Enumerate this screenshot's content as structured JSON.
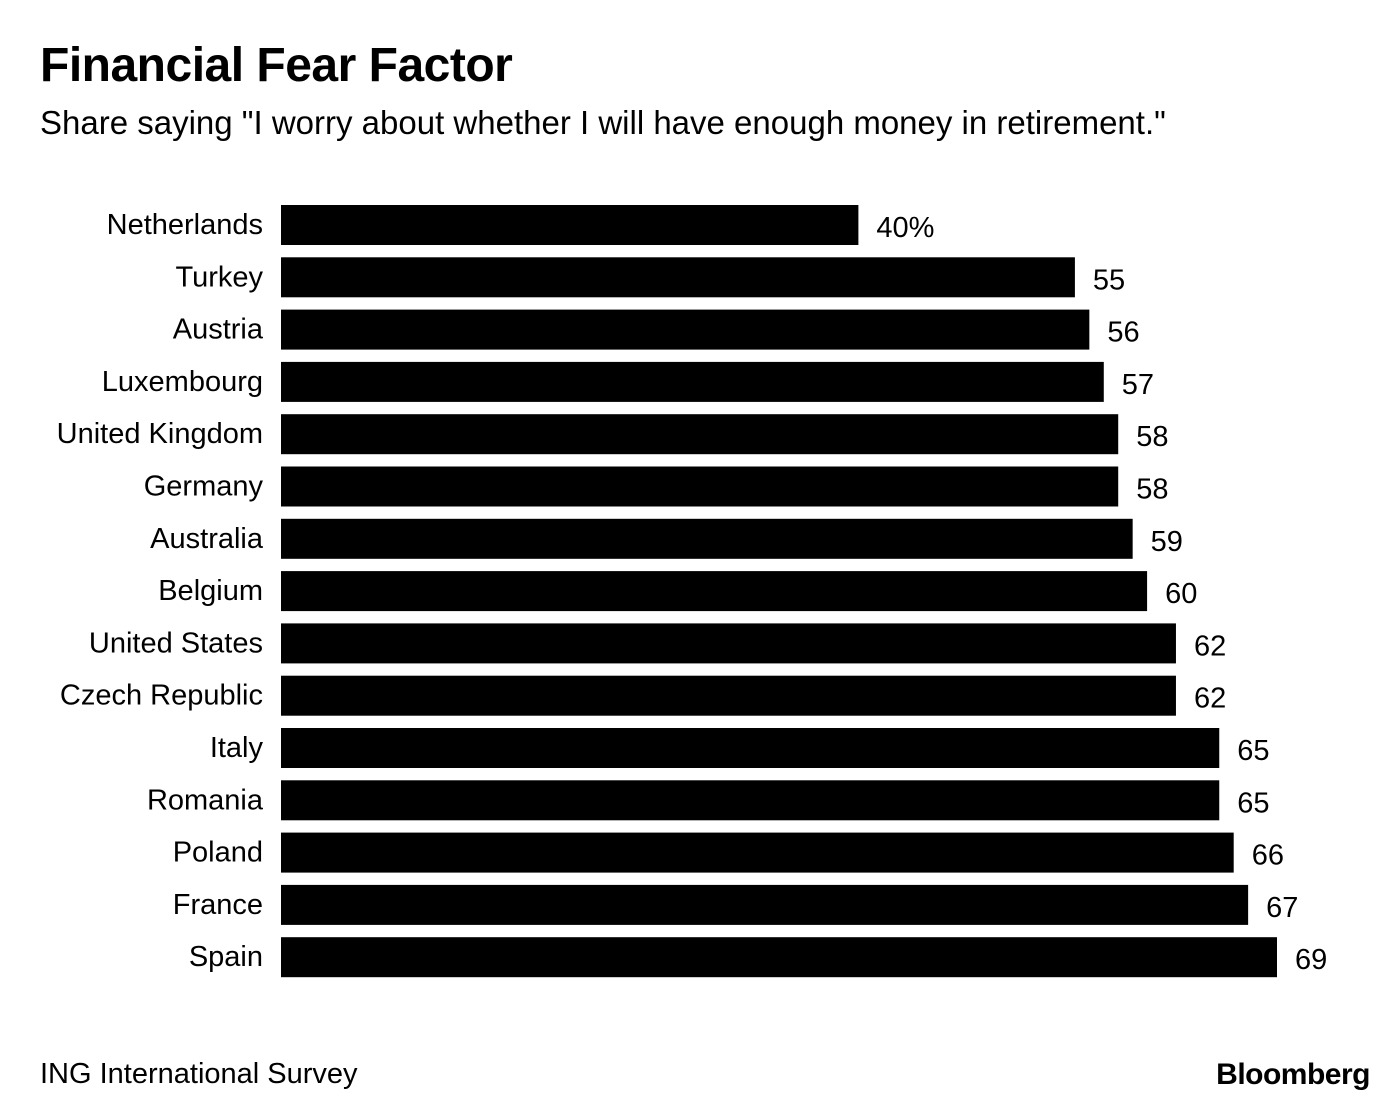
{
  "chart_data": {
    "type": "bar",
    "orientation": "horizontal",
    "title": "Financial Fear Factor",
    "subtitle": "Share saying \"I worry about whether I will have enough money in retirement.\"",
    "categories": [
      "Netherlands",
      "Turkey",
      "Austria",
      "Luxembourg",
      "United Kingdom",
      "Germany",
      "Australia",
      "Belgium",
      "United States",
      "Czech Republic",
      "Italy",
      "Romania",
      "Poland",
      "France",
      "Spain"
    ],
    "values": [
      40,
      55,
      56,
      57,
      58,
      58,
      59,
      60,
      62,
      62,
      65,
      65,
      66,
      67,
      69
    ],
    "value_labels": [
      "40%",
      "55",
      "56",
      "57",
      "58",
      "58",
      "59",
      "60",
      "62",
      "62",
      "65",
      "65",
      "66",
      "67",
      "69"
    ],
    "unit": "%",
    "xlim": [
      0,
      69
    ],
    "grid": false,
    "legend": "none",
    "bar_color": "#000000"
  },
  "footer": {
    "source": "ING International Survey",
    "brand": "Bloomberg"
  }
}
